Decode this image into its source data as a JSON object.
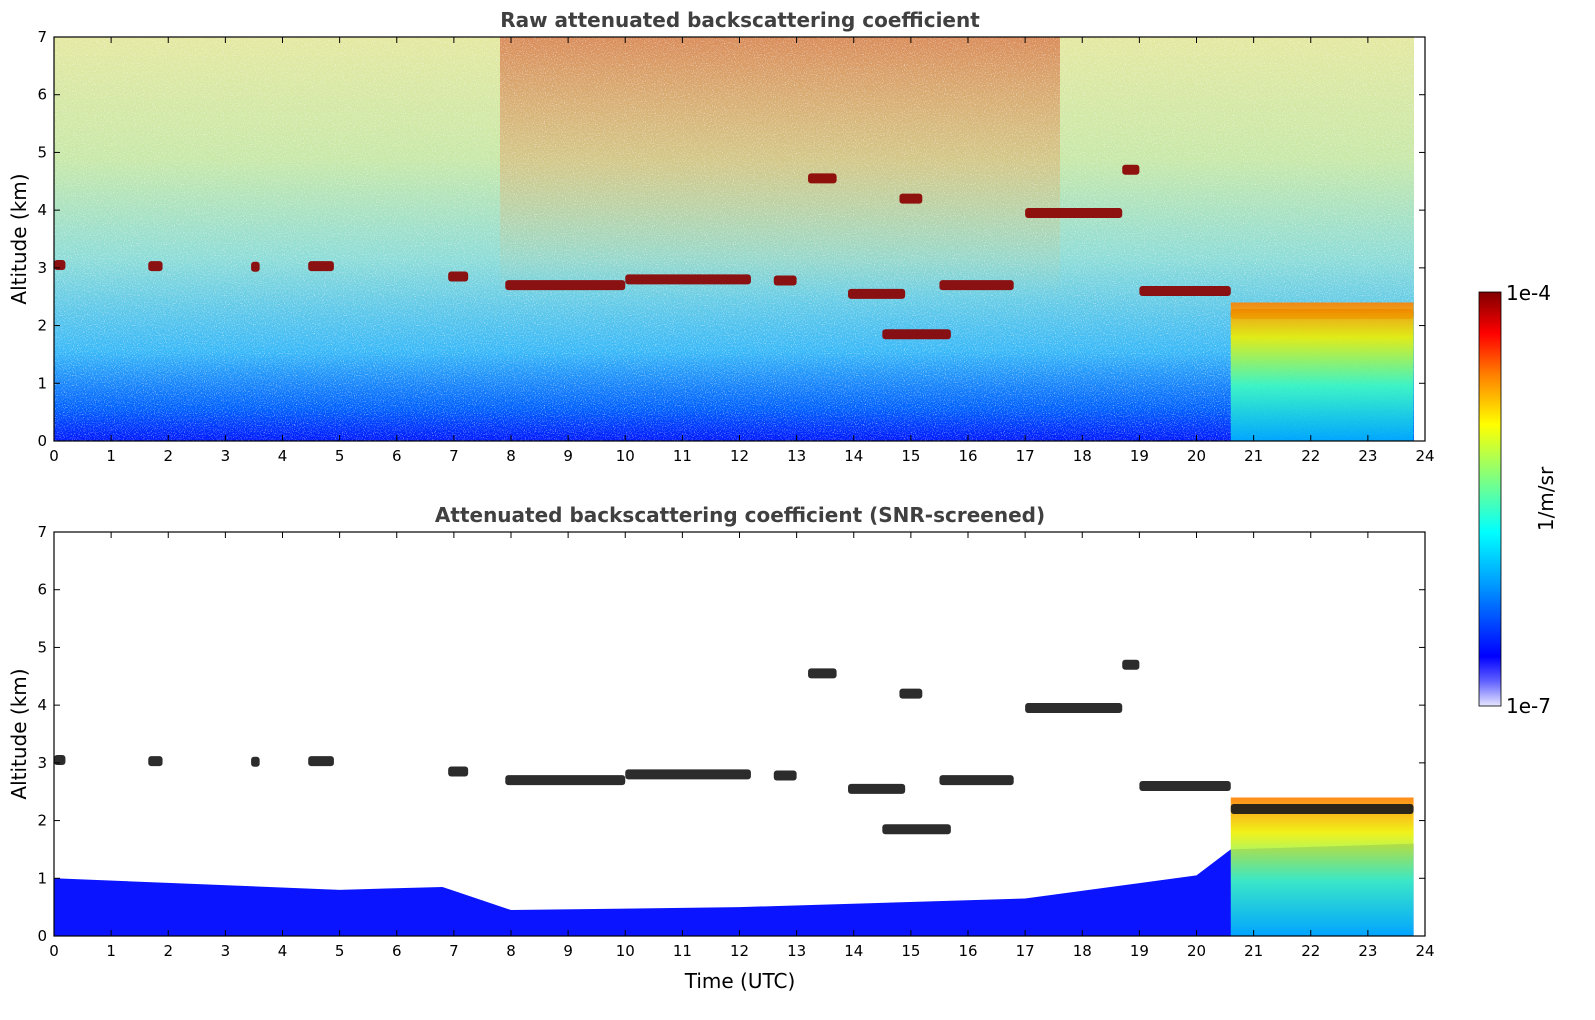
{
  "chart_data": [
    {
      "type": "heatmap",
      "title": "Raw attenuated backscattering coefficient",
      "xlabel": "",
      "ylabel": "Altitude (km)",
      "xlim": [
        0,
        24
      ],
      "ylim": [
        0,
        7
      ],
      "xticks": [
        "0",
        "1",
        "2",
        "3",
        "4",
        "5",
        "6",
        "7",
        "8",
        "9",
        "10",
        "11",
        "12",
        "13",
        "14",
        "15",
        "16",
        "17",
        "18",
        "19",
        "20",
        "21",
        "22",
        "23",
        "24"
      ],
      "yticks": [
        "0",
        "1",
        "2",
        "3",
        "4",
        "5",
        "6",
        "7"
      ],
      "cloud_layers": [
        {
          "t0": 0.0,
          "t1": 0.2,
          "alt": 3.05
        },
        {
          "t0": 1.65,
          "t1": 1.9,
          "alt": 3.03
        },
        {
          "t0": 3.45,
          "t1": 3.6,
          "alt": 3.02
        },
        {
          "t0": 4.45,
          "t1": 4.9,
          "alt": 3.03
        },
        {
          "t0": 6.9,
          "t1": 7.25,
          "alt": 2.85
        },
        {
          "t0": 7.9,
          "t1": 10.0,
          "alt": 2.7
        },
        {
          "t0": 10.0,
          "t1": 12.2,
          "alt": 2.8
        },
        {
          "t0": 12.6,
          "t1": 13.0,
          "alt": 2.78
        },
        {
          "t0": 13.9,
          "t1": 14.9,
          "alt": 2.55
        },
        {
          "t0": 15.5,
          "t1": 16.8,
          "alt": 2.7
        },
        {
          "t0": 14.5,
          "t1": 15.7,
          "alt": 1.85
        },
        {
          "t0": 13.2,
          "t1": 13.7,
          "alt": 4.55
        },
        {
          "t0": 14.8,
          "t1": 15.2,
          "alt": 4.2
        },
        {
          "t0": 17.0,
          "t1": 18.7,
          "alt": 3.95
        },
        {
          "t0": 18.7,
          "t1": 19.0,
          "alt": 4.7
        },
        {
          "t0": 19.0,
          "t1": 20.6,
          "alt": 2.6
        },
        {
          "t0": 20.6,
          "t1": 23.8,
          "alt": 2.2
        }
      ]
    },
    {
      "type": "heatmap",
      "title": "Attenuated backscattering coefficient (SNR-screened)",
      "xlabel": "Time (UTC)",
      "ylabel": "Altitude (km)",
      "xlim": [
        0,
        24
      ],
      "ylim": [
        0,
        7
      ],
      "xticks": [
        "0",
        "1",
        "2",
        "3",
        "4",
        "5",
        "6",
        "7",
        "8",
        "9",
        "10",
        "11",
        "12",
        "13",
        "14",
        "15",
        "16",
        "17",
        "18",
        "19",
        "20",
        "21",
        "22",
        "23",
        "24"
      ],
      "yticks": [
        "0",
        "1",
        "2",
        "3",
        "4",
        "5",
        "6",
        "7"
      ],
      "boundary_layer_top": [
        {
          "t": 0,
          "alt": 1.0
        },
        {
          "t": 5,
          "alt": 0.8
        },
        {
          "t": 6.8,
          "alt": 0.85
        },
        {
          "t": 8,
          "alt": 0.45
        },
        {
          "t": 12,
          "alt": 0.5
        },
        {
          "t": 17,
          "alt": 0.65
        },
        {
          "t": 20,
          "alt": 1.05
        },
        {
          "t": 20.6,
          "alt": 1.5
        },
        {
          "t": 23.8,
          "alt": 1.6
        }
      ]
    }
  ],
  "colorbar": {
    "label": "1/m/sr",
    "max_label": "1e-4",
    "min_label": "1e-7",
    "colormap": "jet",
    "colors": [
      "#e6e6ff",
      "#0000ff",
      "#00a0ff",
      "#00ffff",
      "#80ff80",
      "#ffff00",
      "#ff8000",
      "#ff0000",
      "#800000"
    ]
  }
}
